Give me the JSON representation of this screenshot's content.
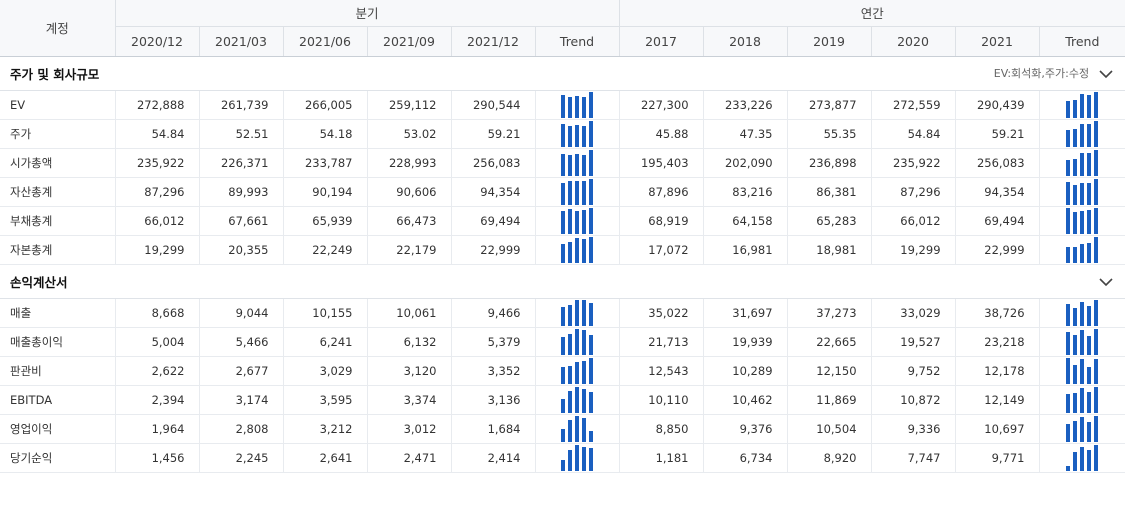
{
  "header": {
    "account_label": "계정",
    "quarter_group": "분기",
    "annual_group": "연간",
    "quarter_cols": [
      "2020/12",
      "2021/03",
      "2021/06",
      "2021/09",
      "2021/12"
    ],
    "annual_cols": [
      "2017",
      "2018",
      "2019",
      "2020",
      "2021"
    ],
    "trend_label": "Trend"
  },
  "colors": {
    "bar": "#1a5fc0",
    "grid": "#e8ebef",
    "header_bg": "#f7f8fa"
  },
  "sections": [
    {
      "title": "주가 및 회사규모",
      "note": "EV:회석화,주가:수정",
      "toggle_icon": "chevron-down-icon",
      "rows": [
        {
          "label": "EV",
          "quarter": [
            "272,888",
            "261,739",
            "266,005",
            "259,112",
            "290,544"
          ],
          "annual": [
            "227,300",
            "233,226",
            "273,877",
            "272,559",
            "290,439"
          ],
          "qv": [
            272888,
            261739,
            266005,
            259112,
            290544
          ],
          "av": [
            227300,
            233226,
            273877,
            272559,
            290439
          ]
        },
        {
          "label": "주가",
          "quarter": [
            "54.84",
            "52.51",
            "54.18",
            "53.02",
            "59.21"
          ],
          "annual": [
            "45.88",
            "47.35",
            "55.35",
            "54.84",
            "59.21"
          ],
          "qv": [
            54.84,
            52.51,
            54.18,
            53.02,
            59.21
          ],
          "av": [
            45.88,
            47.35,
            55.35,
            54.84,
            59.21
          ]
        },
        {
          "label": "시가총액",
          "quarter": [
            "235,922",
            "226,371",
            "233,787",
            "228,993",
            "256,083"
          ],
          "annual": [
            "195,403",
            "202,090",
            "236,898",
            "235,922",
            "256,083"
          ],
          "qv": [
            235922,
            226371,
            233787,
            228993,
            256083
          ],
          "av": [
            195403,
            202090,
            236898,
            235922,
            256083
          ]
        },
        {
          "label": "자산총계",
          "quarter": [
            "87,296",
            "89,993",
            "90,194",
            "90,606",
            "94,354"
          ],
          "annual": [
            "87,896",
            "83,216",
            "86,381",
            "87,296",
            "94,354"
          ],
          "qv": [
            87296,
            89993,
            90194,
            90606,
            94354
          ],
          "av": [
            87896,
            83216,
            86381,
            87296,
            94354
          ]
        },
        {
          "label": "부채총계",
          "quarter": [
            "66,012",
            "67,661",
            "65,939",
            "66,473",
            "69,494"
          ],
          "annual": [
            "68,919",
            "64,158",
            "65,283",
            "66,012",
            "69,494"
          ],
          "qv": [
            66012,
            67661,
            65939,
            66473,
            69494
          ],
          "av": [
            68919,
            64158,
            65283,
            66012,
            69494
          ]
        },
        {
          "label": "자본총계",
          "quarter": [
            "19,299",
            "20,355",
            "22,249",
            "22,179",
            "22,999"
          ],
          "annual": [
            "17,072",
            "16,981",
            "18,981",
            "19,299",
            "22,999"
          ],
          "qv": [
            19299,
            20355,
            22249,
            22179,
            22999
          ],
          "av": [
            17072,
            16981,
            18981,
            19299,
            22999
          ]
        }
      ]
    },
    {
      "title": "손익계산서",
      "note": "",
      "toggle_icon": "chevron-down-icon",
      "rows": [
        {
          "label": "매출",
          "quarter": [
            "8,668",
            "9,044",
            "10,155",
            "10,061",
            "9,466"
          ],
          "annual": [
            "35,022",
            "31,697",
            "37,273",
            "33,029",
            "38,726"
          ],
          "qv": [
            8668,
            9044,
            10155,
            10061,
            9466
          ],
          "av": [
            35022,
            31697,
            37273,
            33029,
            38726
          ]
        },
        {
          "label": "매출총이익",
          "quarter": [
            "5,004",
            "5,466",
            "6,241",
            "6,132",
            "5,379"
          ],
          "annual": [
            "21,713",
            "19,939",
            "22,665",
            "19,527",
            "23,218"
          ],
          "qv": [
            5004,
            5466,
            6241,
            6132,
            5379
          ],
          "av": [
            21713,
            19939,
            22665,
            19527,
            23218
          ]
        },
        {
          "label": "판관비",
          "quarter": [
            "2,622",
            "2,677",
            "3,029",
            "3,120",
            "3,352"
          ],
          "annual": [
            "12,543",
            "10,289",
            "12,150",
            "9,752",
            "12,178"
          ],
          "qv": [
            2622,
            2677,
            3029,
            3120,
            3352
          ],
          "av": [
            12543,
            10289,
            12150,
            9752,
            12178
          ]
        },
        {
          "label": "EBITDA",
          "quarter": [
            "2,394",
            "3,174",
            "3,595",
            "3,374",
            "3,136"
          ],
          "annual": [
            "10,110",
            "10,462",
            "11,869",
            "10,872",
            "12,149"
          ],
          "qv": [
            2394,
            3174,
            3595,
            3374,
            3136
          ],
          "av": [
            10110,
            10462,
            11869,
            10872,
            12149
          ]
        },
        {
          "label": "영업이익",
          "quarter": [
            "1,964",
            "2,808",
            "3,212",
            "3,012",
            "1,684"
          ],
          "annual": [
            "8,850",
            "9,376",
            "10,504",
            "9,336",
            "10,697"
          ],
          "qv": [
            1964,
            2808,
            3212,
            3012,
            1684
          ],
          "av": [
            8850,
            9376,
            10504,
            9336,
            10697
          ]
        },
        {
          "label": "당기순익",
          "quarter": [
            "1,456",
            "2,245",
            "2,641",
            "2,471",
            "2,414"
          ],
          "annual": [
            "1,181",
            "6,734",
            "8,920",
            "7,747",
            "9,771"
          ],
          "qv": [
            1456,
            2245,
            2641,
            2471,
            2414
          ],
          "av": [
            1181,
            6734,
            8920,
            7747,
            9771
          ]
        }
      ]
    }
  ]
}
